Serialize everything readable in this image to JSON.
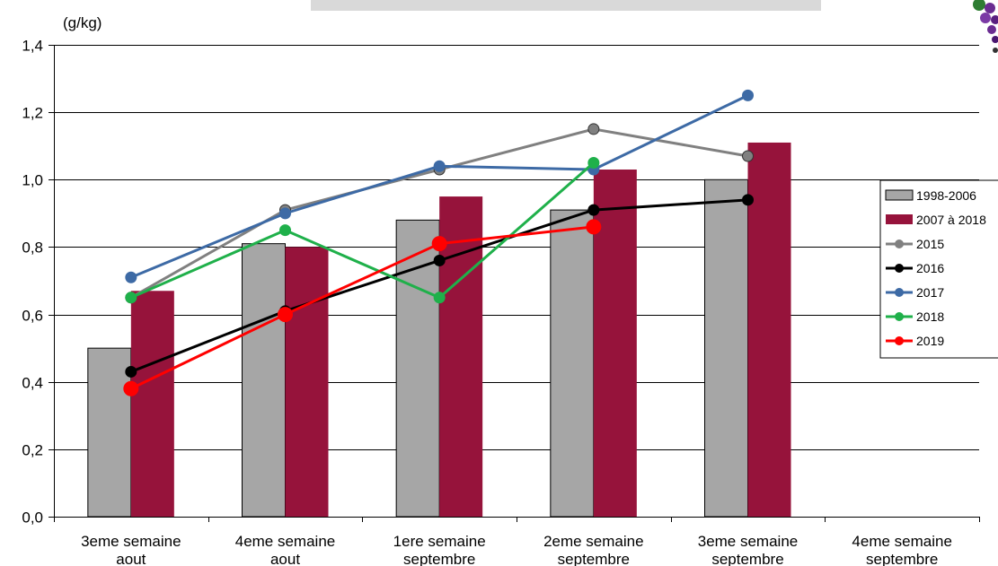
{
  "chart_data": {
    "type": "bar",
    "ylabel": "(g/kg)",
    "ylim": [
      0,
      1.4
    ],
    "ytick_step": 0.2,
    "grid": true,
    "legend_position": "right",
    "categories": [
      [
        "3eme semaine",
        "aout"
      ],
      [
        "4eme semaine",
        "aout"
      ],
      [
        "1ere semaine",
        "septembre"
      ],
      [
        "2eme semaine",
        "septembre"
      ],
      [
        "3eme semaine",
        "septembre"
      ],
      [
        "4eme semaine",
        "septembre"
      ]
    ],
    "y_tick_labels": [
      "0,0",
      "0,2",
      "0,4",
      "0,6",
      "0,8",
      "1,0",
      "1,2",
      "1,4"
    ],
    "bar_series": [
      {
        "name": "1998-2006",
        "color": "#a6a6a6",
        "values": [
          0.5,
          0.81,
          0.88,
          0.91,
          1.0,
          null
        ]
      },
      {
        "name": "2007 à 2018",
        "color": "#96133b",
        "values": [
          0.67,
          0.8,
          0.95,
          1.03,
          1.11,
          null
        ]
      }
    ],
    "line_series": [
      {
        "name": "2015",
        "color": "#808080",
        "values": [
          0.65,
          0.91,
          1.03,
          1.15,
          1.07,
          null
        ]
      },
      {
        "name": "2016",
        "color": "#000000",
        "values": [
          0.43,
          0.61,
          0.76,
          0.91,
          0.94,
          null
        ]
      },
      {
        "name": "2017",
        "color": "#3d6aa5",
        "values": [
          0.71,
          0.9,
          1.04,
          1.03,
          1.25,
          null
        ]
      },
      {
        "name": "2018",
        "color": "#1fb04a",
        "values": [
          0.65,
          0.85,
          0.65,
          1.05,
          null,
          null
        ]
      },
      {
        "name": "2019",
        "color": "#ff0000",
        "values": [
          0.38,
          0.6,
          0.81,
          0.86,
          null,
          null
        ]
      }
    ]
  }
}
